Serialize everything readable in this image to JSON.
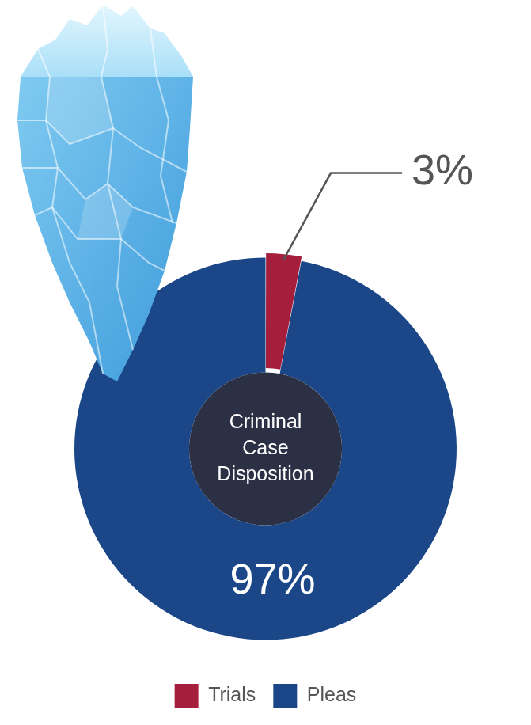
{
  "chart_data": {
    "type": "doughnut",
    "title": "Criminal Case Disposition",
    "categories": [
      "Trials",
      "Pleas"
    ],
    "values": [
      3,
      97
    ],
    "value_labels": [
      "3%",
      "97%"
    ],
    "colors": [
      "#a51e3c",
      "#1b4788"
    ],
    "data_labels": true,
    "legend": "bottom"
  }
}
